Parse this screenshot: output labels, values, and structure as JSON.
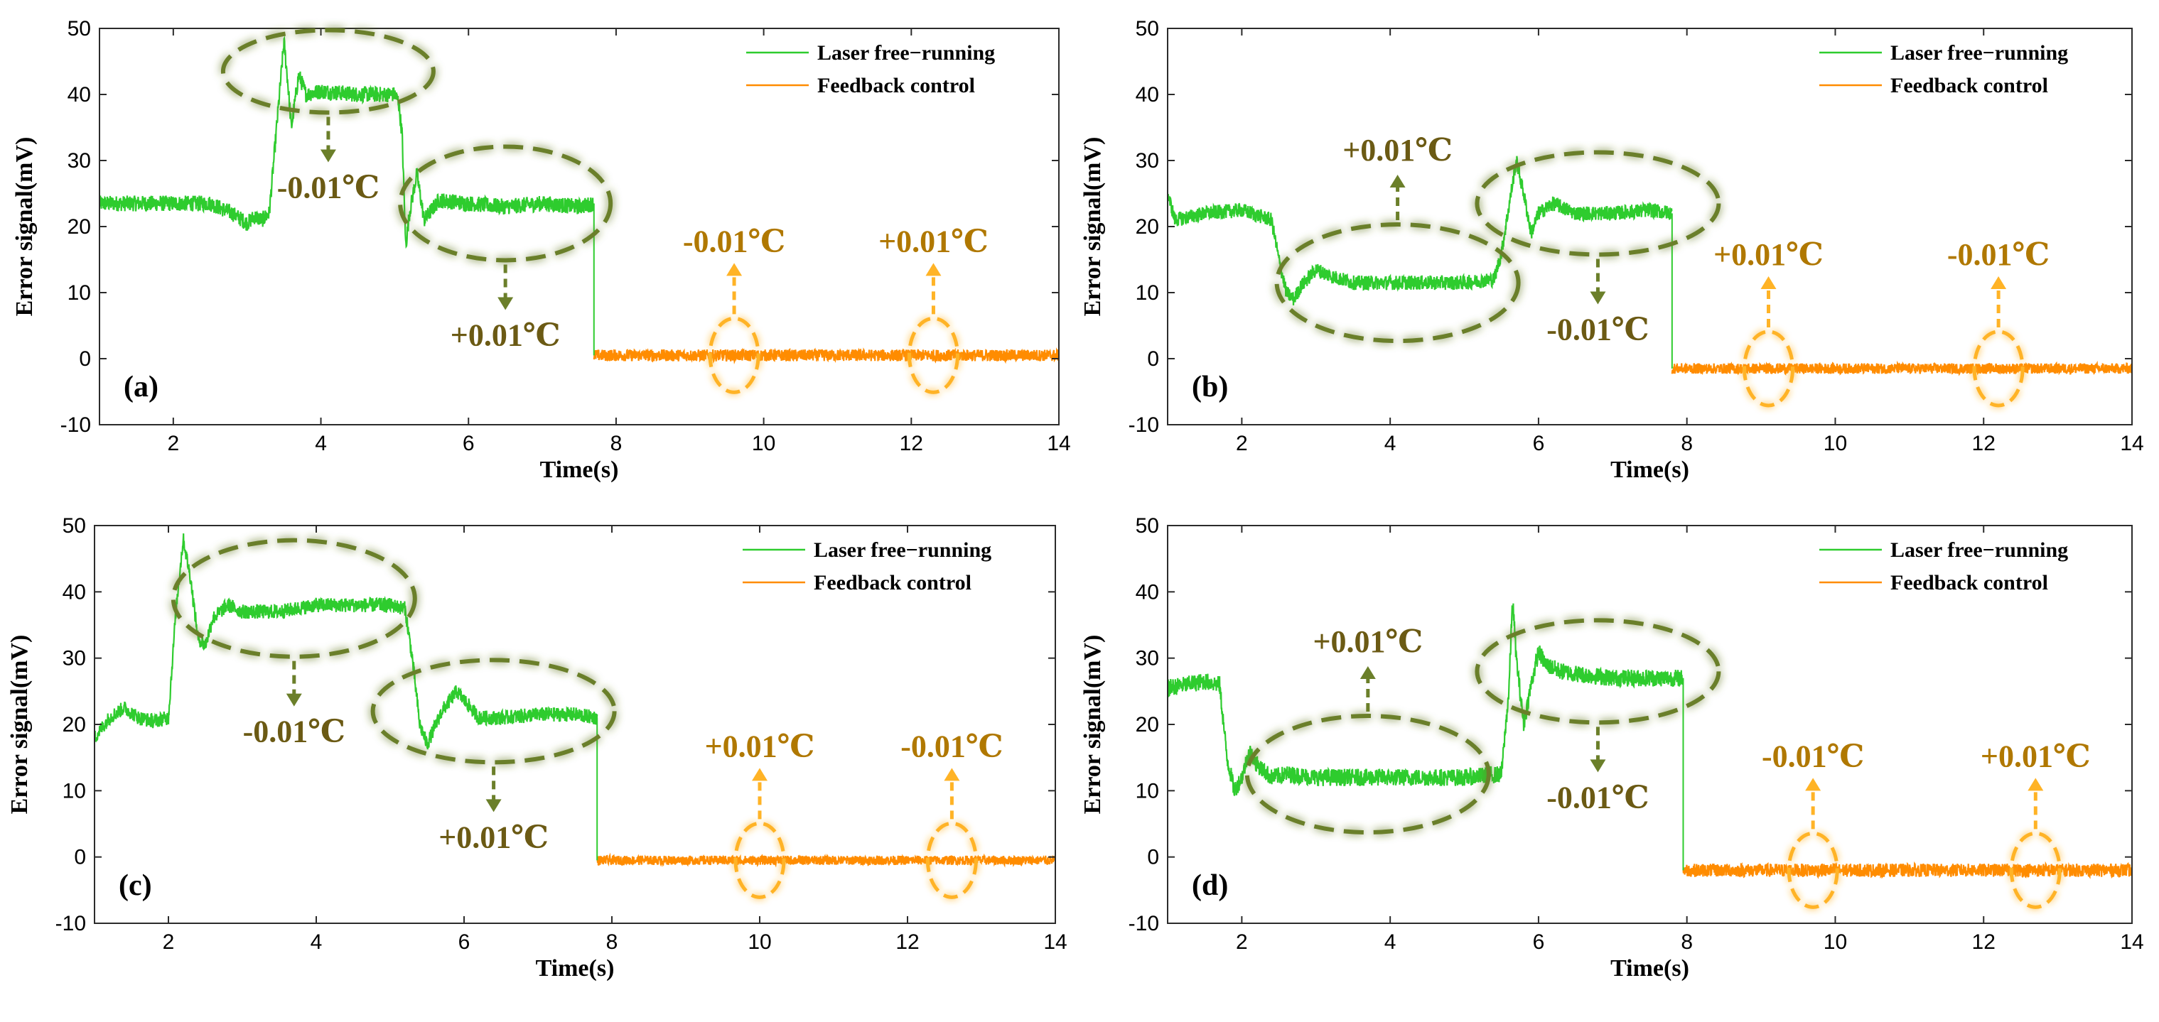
{
  "colors": {
    "free": "#2ecc2e",
    "feedback": "#ff8c00",
    "green_anno": "#6b7f2a",
    "green_text": "#6b5a14",
    "orange_anno": "#ffb326",
    "orange_text": "#b07800"
  },
  "chart_data": [
    {
      "type": "line",
      "panel": "(a)",
      "xlabel": "Time(s)",
      "ylabel": "Error signal(mV)",
      "xlim": [
        1,
        14
      ],
      "ylim": [
        -10,
        50
      ],
      "xticks": [
        "2",
        "4",
        "6",
        "8",
        "10",
        "12",
        "14"
      ],
      "yticks": [
        "-10",
        "0",
        "10",
        "20",
        "30",
        "40",
        "50"
      ],
      "legend": [
        "Laser free−running",
        "Feedback control"
      ],
      "legend_position": "top-right",
      "grid": false,
      "series": [
        {
          "name": "Laser free−running",
          "x": [
            1.0,
            2.5,
            2.8,
            3.0,
            3.1,
            3.2,
            3.3,
            3.4,
            3.5,
            3.55,
            3.6,
            3.7,
            3.8,
            4.0,
            4.5,
            5.0,
            5.05,
            5.1,
            5.15,
            5.2,
            5.3,
            5.4,
            5.6,
            6.0,
            6.5,
            7.0,
            7.5,
            7.7
          ],
          "y": [
            23.5,
            23.5,
            22,
            20.5,
            21.5,
            21,
            22,
            35,
            48,
            42,
            35,
            43,
            40,
            40.5,
            40,
            40,
            39,
            34,
            17,
            22,
            28,
            21,
            24,
            23.5,
            23,
            23.5,
            23,
            23.5
          ],
          "noise": 1.2
        },
        {
          "name": "Feedback control",
          "x": [
            7.7,
            14.0
          ],
          "y": [
            0.5,
            0.5
          ],
          "noise": 0.9
        }
      ],
      "annotations": [
        {
          "text": "-0.01℃",
          "x": 4.1,
          "y": 43.5
        },
        {
          "text": "+0.01℃",
          "x": 6.5,
          "y": 23.5
        },
        {
          "text": "-0.01℃",
          "x": 9.6,
          "y": 0.5
        },
        {
          "text": "+0.01℃",
          "x": 12.3,
          "y": 0.5
        }
      ]
    },
    {
      "type": "line",
      "panel": "(b)",
      "xlabel": "Time(s)",
      "ylabel": "Error signal(mV)",
      "xlim": [
        1,
        14
      ],
      "ylim": [
        -10,
        50
      ],
      "xticks": [
        "2",
        "4",
        "6",
        "8",
        "10",
        "12",
        "14"
      ],
      "yticks": [
        "-10",
        "0",
        "10",
        "20",
        "30",
        "40",
        "50"
      ],
      "legend": [
        "Laser free−running",
        "Feedback control"
      ],
      "legend_position": "top-right",
      "grid": false,
      "series": [
        {
          "name": "Laser free−running",
          "x": [
            1.0,
            1.1,
            1.5,
            2.0,
            2.4,
            2.5,
            2.6,
            2.7,
            2.8,
            3.0,
            3.2,
            3.5,
            4.0,
            4.5,
            5.0,
            5.4,
            5.5,
            5.6,
            5.7,
            5.8,
            5.9,
            6.0,
            6.2,
            6.5,
            7.0,
            7.5,
            7.8
          ],
          "y": [
            25,
            21,
            22,
            22.5,
            21,
            15,
            10,
            9,
            11,
            13.5,
            12.5,
            11.5,
            11.5,
            11.5,
            11.5,
            12,
            16,
            23,
            30,
            25,
            19,
            22,
            23.5,
            22,
            22,
            22.5,
            22
          ],
          "noise": 1.1
        },
        {
          "name": "Feedback control",
          "x": [
            7.8,
            14.0
          ],
          "y": [
            -1.5,
            -1.5
          ],
          "noise": 0.8
        }
      ],
      "annotations": [
        {
          "text": "+0.01℃",
          "x": 4.1,
          "y": 11.5
        },
        {
          "text": "-0.01℃",
          "x": 6.8,
          "y": 23.5
        },
        {
          "text": "+0.01℃",
          "x": 9.1,
          "y": -1.5
        },
        {
          "text": "-0.01℃",
          "x": 12.2,
          "y": -1.5
        }
      ]
    },
    {
      "type": "line",
      "panel": "(c)",
      "xlabel": "Time(s)",
      "ylabel": "Error signal(mV)",
      "xlim": [
        1,
        14
      ],
      "ylim": [
        -10,
        50
      ],
      "xticks": [
        "2",
        "4",
        "6",
        "8",
        "10",
        "12",
        "14"
      ],
      "yticks": [
        "-10",
        "0",
        "10",
        "20",
        "30",
        "40",
        "50"
      ],
      "legend": [
        "Laser free−running",
        "Feedback control"
      ],
      "legend_position": "top-right",
      "grid": false,
      "series": [
        {
          "name": "Laser free−running",
          "x": [
            1.0,
            1.2,
            1.4,
            1.6,
            1.8,
            2.0,
            2.1,
            2.2,
            2.3,
            2.4,
            2.5,
            2.6,
            2.8,
            3.0,
            3.5,
            4.0,
            4.5,
            5.0,
            5.2,
            5.3,
            5.4,
            5.5,
            5.7,
            5.9,
            6.2,
            6.5,
            7.0,
            7.5,
            7.8
          ],
          "y": [
            18,
            21,
            22.5,
            21,
            20.5,
            21,
            37,
            48,
            42,
            33,
            32,
            36,
            38,
            37,
            37,
            38,
            38,
            38,
            37.5,
            30,
            20,
            17,
            22,
            25,
            21,
            21,
            21.5,
            21.5,
            21
          ],
          "noise": 1.1
        },
        {
          "name": "Feedback control",
          "x": [
            7.8,
            14.0
          ],
          "y": [
            -0.5,
            -0.5
          ],
          "noise": 0.7
        }
      ],
      "annotations": [
        {
          "text": "-0.01℃",
          "x": 3.7,
          "y": 39
        },
        {
          "text": "+0.01℃",
          "x": 6.4,
          "y": 22
        },
        {
          "text": "+0.01℃",
          "x": 10.0,
          "y": -0.5
        },
        {
          "text": "-0.01℃",
          "x": 12.6,
          "y": -0.5
        }
      ]
    },
    {
      "type": "line",
      "panel": "(d)",
      "xlabel": "Time(s)",
      "ylabel": "Error signal(mV)",
      "xlim": [
        1,
        14
      ],
      "ylim": [
        -10,
        50
      ],
      "xticks": [
        "2",
        "4",
        "6",
        "8",
        "10",
        "12",
        "14"
      ],
      "yticks": [
        "-10",
        "0",
        "10",
        "20",
        "30",
        "40",
        "50"
      ],
      "legend": [
        "Laser free−running",
        "Feedback control"
      ],
      "legend_position": "top-right",
      "grid": false,
      "series": [
        {
          "name": "Laser free−running",
          "x": [
            1.0,
            1.5,
            1.7,
            1.8,
            1.9,
            2.0,
            2.1,
            2.2,
            2.4,
            2.6,
            3.0,
            3.5,
            4.0,
            4.5,
            5.0,
            5.5,
            5.6,
            5.65,
            5.7,
            5.8,
            5.9,
            6.0,
            6.1,
            6.3,
            6.6,
            7.0,
            7.5,
            7.95
          ],
          "y": [
            25.5,
            26.5,
            26,
            15,
            10,
            12,
            16,
            14,
            12,
            12.5,
            12,
            12,
            12,
            12,
            12,
            12.5,
            25,
            39,
            30,
            20,
            26,
            31,
            29,
            28,
            27.5,
            27,
            27,
            27
          ],
          "noise": 1.3
        },
        {
          "name": "Feedback control",
          "x": [
            7.95,
            14.0
          ],
          "y": [
            -2,
            -2
          ],
          "noise": 1.0
        }
      ],
      "annotations": [
        {
          "text": "+0.01℃",
          "x": 3.7,
          "y": 12.5
        },
        {
          "text": "-0.01℃",
          "x": 6.8,
          "y": 28
        },
        {
          "text": "-0.01℃",
          "x": 9.7,
          "y": -2
        },
        {
          "text": "+0.01℃",
          "x": 12.7,
          "y": -2
        }
      ]
    }
  ]
}
